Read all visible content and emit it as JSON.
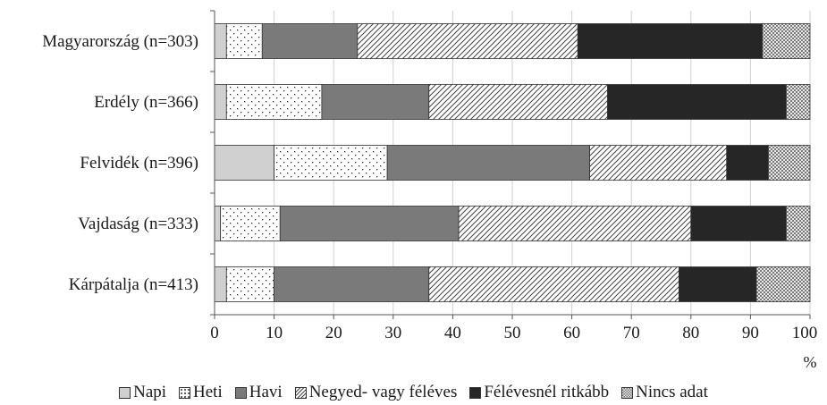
{
  "chart_data": {
    "type": "bar",
    "orientation": "horizontal",
    "stacked": true,
    "categories": [
      "Magyarország (n=303)",
      "Erdély (n=366)",
      "Felvidék (n=396)",
      "Vajdaság (n=333)",
      "Kárpátalja (n=413)"
    ],
    "series": [
      {
        "name": "Napi",
        "values": [
          2,
          2,
          10,
          1,
          2
        ],
        "color": "#d0d0d0",
        "pattern": "solid-light"
      },
      {
        "name": "Heti",
        "values": [
          6,
          16,
          19,
          10,
          8
        ],
        "color": "#ffffff",
        "pattern": "dots"
      },
      {
        "name": "Havi",
        "values": [
          16,
          18,
          34,
          30,
          26
        ],
        "color": "#7a7a7a",
        "pattern": "solid-mid"
      },
      {
        "name": "Negyed- vagy féléves",
        "values": [
          37,
          30,
          23,
          39,
          42
        ],
        "color": "#ffffff",
        "pattern": "diagonal-hatch"
      },
      {
        "name": "Félévesnél ritkább",
        "values": [
          31,
          30,
          7,
          16,
          13
        ],
        "color": "#262626",
        "pattern": "solid-dark"
      },
      {
        "name": "Nincs adat",
        "values": [
          8,
          4,
          7,
          4,
          9
        ],
        "color": "#bdbdbd",
        "pattern": "checker"
      }
    ],
    "xlim": [
      0,
      100
    ],
    "xticks": [
      0,
      10,
      20,
      30,
      40,
      50,
      60,
      70,
      80,
      90,
      100
    ],
    "xunit": "%",
    "grid": "vertical",
    "legend_position": "bottom"
  }
}
